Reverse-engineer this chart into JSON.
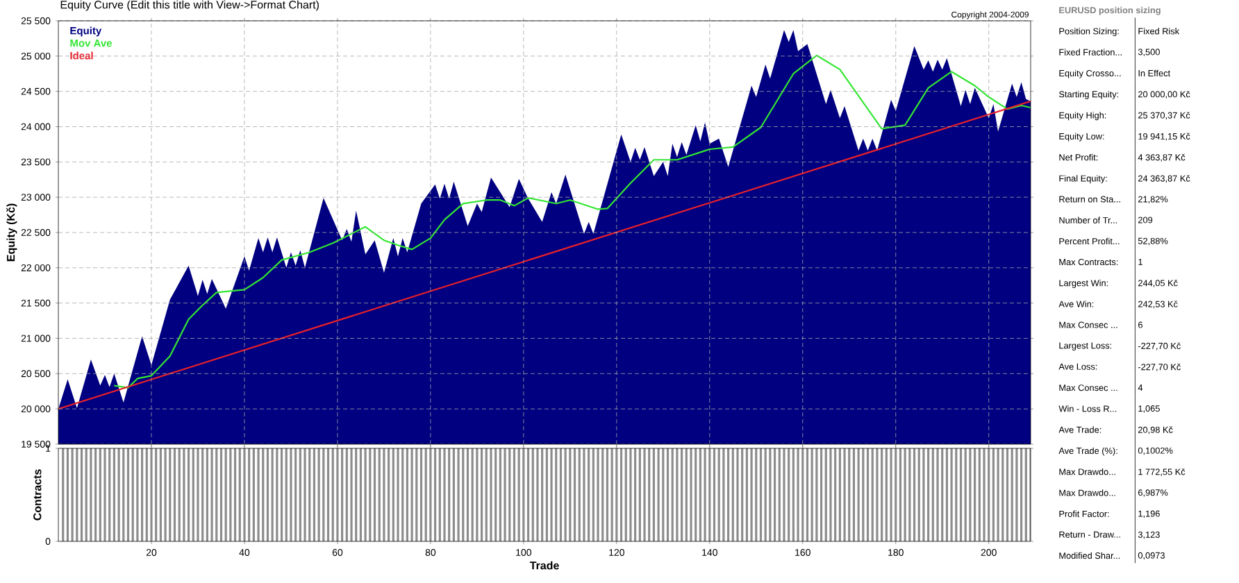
{
  "chart_data": [
    {
      "type": "line",
      "title": "Equity Curve (Edit this title with View->Format Chart)",
      "ylabel": "Equity (Kč)",
      "annotations": [
        "Copyright 2004-2009"
      ],
      "xlim": [
        0,
        209
      ],
      "xticks": [
        20,
        40,
        60,
        80,
        100,
        120,
        140,
        160,
        180,
        200
      ],
      "ylim": [
        19500,
        25500
      ],
      "yticks": [
        {
          "value": 19500,
          "label": "19 500"
        },
        {
          "value": 20000,
          "label": "20 000"
        },
        {
          "value": 20500,
          "label": "20 500"
        },
        {
          "value": 21000,
          "label": "21 000"
        },
        {
          "value": 21500,
          "label": "21 500"
        },
        {
          "value": 22000,
          "label": "22 000"
        },
        {
          "value": 22500,
          "label": "22 500"
        },
        {
          "value": 23000,
          "label": "23 000"
        },
        {
          "value": 23500,
          "label": "23 500"
        },
        {
          "value": 24000,
          "label": "24 000"
        },
        {
          "value": 24500,
          "label": "24 500"
        },
        {
          "value": 25000,
          "label": "25 000"
        },
        {
          "value": 25500,
          "label": "25 500"
        }
      ],
      "grid": true,
      "legend": "top left",
      "tick_labels": "y",
      "marker": "none",
      "series": [
        {
          "name": "Equity",
          "type": "area",
          "color": "#000080",
          "x": [
            0,
            2,
            4,
            7,
            9,
            10,
            11,
            12,
            14,
            18,
            20,
            24,
            28,
            30,
            31,
            32,
            33,
            36,
            40,
            41,
            43,
            44,
            45,
            46,
            47,
            49,
            50,
            51,
            52,
            53,
            57,
            61,
            62,
            63,
            64,
            66,
            68,
            70,
            72,
            73,
            74,
            75,
            78,
            81,
            82,
            83,
            84,
            85,
            88,
            90,
            91,
            93,
            97,
            99,
            101,
            104,
            106,
            107,
            109,
            113,
            114,
            115,
            121,
            123,
            124,
            125,
            126,
            128,
            130,
            131,
            132,
            133,
            134,
            135,
            137,
            138,
            139,
            140,
            142,
            144,
            149,
            150,
            152,
            153,
            156,
            157,
            158,
            159,
            161,
            165,
            166,
            168,
            169,
            172,
            173,
            174,
            175,
            176,
            179,
            180,
            184,
            186,
            187,
            188,
            189,
            190,
            191,
            194,
            195,
            196,
            197,
            200,
            201,
            202,
            205,
            206,
            207,
            208,
            209
          ],
          "values": [
            20000,
            20420,
            20010,
            20700,
            20330,
            20480,
            20310,
            20500,
            20090,
            21030,
            20620,
            21550,
            22030,
            21600,
            21830,
            21630,
            21840,
            21420,
            22160,
            21960,
            22420,
            22220,
            22430,
            22220,
            22430,
            22000,
            22220,
            22030,
            22250,
            22000,
            22990,
            22390,
            22550,
            22370,
            22810,
            22190,
            22390,
            21930,
            22420,
            22160,
            22420,
            22220,
            22910,
            23180,
            22980,
            23190,
            22980,
            23220,
            22590,
            22910,
            22790,
            23280,
            22860,
            23260,
            22980,
            22650,
            23070,
            22910,
            23320,
            22480,
            22650,
            22480,
            23890,
            23500,
            23700,
            23530,
            23710,
            23300,
            23500,
            23300,
            23760,
            23570,
            23780,
            23600,
            24020,
            23790,
            24060,
            23760,
            23830,
            23430,
            24580,
            24420,
            24880,
            24680,
            25370,
            25200,
            25370,
            25070,
            25170,
            24320,
            24520,
            24120,
            24290,
            23660,
            23830,
            23660,
            23830,
            23660,
            24380,
            24220,
            25140,
            24810,
            24940,
            24780,
            24950,
            24810,
            24970,
            24290,
            24520,
            24320,
            24550,
            24120,
            24320,
            23930,
            24610,
            24420,
            24630,
            24390,
            24360
          ]
        },
        {
          "name": "Mov Ave",
          "type": "line",
          "color": "#33e633",
          "x": [
            12,
            15,
            17,
            20,
            24,
            28,
            31,
            34,
            40,
            44,
            48,
            54,
            59,
            66,
            70,
            73,
            76,
            80,
            83,
            87,
            92,
            95,
            98,
            101,
            107,
            110,
            116,
            118,
            123,
            128,
            133,
            140,
            145,
            151,
            158,
            163,
            168,
            174,
            177,
            182,
            187,
            192,
            197,
            200,
            204,
            207,
            209
          ],
          "values": [
            20330,
            20300,
            20430,
            20470,
            20750,
            21270,
            21470,
            21650,
            21690,
            21860,
            22110,
            22220,
            22350,
            22580,
            22390,
            22320,
            22260,
            22420,
            22680,
            22910,
            22960,
            22960,
            22880,
            22990,
            22910,
            22960,
            22830,
            22840,
            23200,
            23530,
            23530,
            23680,
            23710,
            23990,
            24750,
            25010,
            24810,
            24250,
            23970,
            24020,
            24550,
            24780,
            24580,
            24420,
            24250,
            24300,
            24270
          ]
        },
        {
          "name": "Ideal",
          "type": "line",
          "color": "#e8202a",
          "x": [
            0,
            209
          ],
          "values": [
            20000,
            24360
          ]
        }
      ]
    },
    {
      "type": "bar",
      "xlabel": "Trade",
      "ylabel": "Contracts",
      "color": "#8c8c8c",
      "xlim": [
        0,
        209
      ],
      "xticks": [
        20,
        40,
        60,
        80,
        100,
        120,
        140,
        160,
        180,
        200
      ],
      "ylim": [
        0,
        1
      ],
      "yticks": [
        0,
        1
      ],
      "x": [
        1,
        2,
        3,
        4,
        5,
        6,
        7,
        8,
        9,
        10,
        11,
        12,
        13,
        14,
        15,
        16,
        17,
        18,
        19,
        20,
        21,
        22,
        23,
        24,
        25,
        26,
        27,
        28,
        29,
        30,
        31,
        32,
        33,
        34,
        35,
        36,
        37,
        38,
        39,
        40,
        41,
        42,
        43,
        44,
        45,
        46,
        47,
        48,
        49,
        50,
        51,
        52,
        53,
        54,
        55,
        56,
        57,
        58,
        59,
        60,
        61,
        62,
        63,
        64,
        65,
        66,
        67,
        68,
        69,
        70,
        71,
        72,
        73,
        74,
        75,
        76,
        77,
        78,
        79,
        80,
        81,
        82,
        83,
        84,
        85,
        86,
        87,
        88,
        89,
        90,
        91,
        92,
        93,
        94,
        95,
        96,
        97,
        98,
        99,
        100,
        101,
        102,
        103,
        104,
        105,
        106,
        107,
        108,
        109,
        110,
        111,
        112,
        113,
        114,
        115,
        116,
        117,
        118,
        119,
        120,
        121,
        122,
        123,
        124,
        125,
        126,
        127,
        128,
        129,
        130,
        131,
        132,
        133,
        134,
        135,
        136,
        137,
        138,
        139,
        140,
        141,
        142,
        143,
        144,
        145,
        146,
        147,
        148,
        149,
        150,
        151,
        152,
        153,
        154,
        155,
        156,
        157,
        158,
        159,
        160,
        161,
        162,
        163,
        164,
        165,
        166,
        167,
        168,
        169,
        170,
        171,
        172,
        173,
        174,
        175,
        176,
        177,
        178,
        179,
        180,
        181,
        182,
        183,
        184,
        185,
        186,
        187,
        188,
        189,
        190,
        191,
        192,
        193,
        194,
        195,
        196,
        197,
        198,
        199,
        200,
        201,
        202,
        203,
        204,
        205,
        206,
        207,
        208,
        209
      ],
      "values": [
        1,
        1,
        1,
        1,
        1,
        1,
        1,
        1,
        1,
        1,
        1,
        1,
        1,
        1,
        1,
        1,
        1,
        1,
        1,
        1,
        1,
        1,
        1,
        1,
        1,
        1,
        1,
        1,
        1,
        1,
        1,
        1,
        1,
        1,
        1,
        1,
        1,
        1,
        1,
        1,
        1,
        1,
        1,
        1,
        1,
        1,
        1,
        1,
        1,
        1,
        1,
        1,
        1,
        1,
        1,
        1,
        1,
        1,
        1,
        1,
        1,
        1,
        1,
        1,
        1,
        1,
        1,
        1,
        1,
        1,
        1,
        1,
        1,
        1,
        1,
        1,
        1,
        1,
        1,
        1,
        1,
        1,
        1,
        1,
        1,
        1,
        1,
        1,
        1,
        1,
        1,
        1,
        1,
        1,
        1,
        1,
        1,
        1,
        1,
        1,
        1,
        1,
        1,
        1,
        1,
        1,
        1,
        1,
        1,
        1,
        1,
        1,
        1,
        1,
        1,
        1,
        1,
        1,
        1,
        1,
        1,
        1,
        1,
        1,
        1,
        1,
        1,
        1,
        1,
        1,
        1,
        1,
        1,
        1,
        1,
        1,
        1,
        1,
        1,
        1,
        1,
        1,
        1,
        1,
        1,
        1,
        1,
        1,
        1,
        1,
        1,
        1,
        1,
        1,
        1,
        1,
        1,
        1,
        1,
        1,
        1,
        1,
        1,
        1,
        1,
        1,
        1,
        1,
        1,
        1,
        1,
        1,
        1,
        1,
        1,
        1,
        1,
        1,
        1,
        1,
        1,
        1,
        1,
        1,
        1,
        1,
        1,
        1,
        1,
        1,
        1,
        1,
        1,
        1,
        1,
        1,
        1,
        1,
        1,
        1,
        1,
        1,
        1,
        1,
        1,
        1,
        1,
        1,
        1
      ]
    },
    {
      "type": "other",
      "title": "EURUSD position sizing",
      "annotations": [
        "Position Sizing:",
        "Fixed Risk",
        "Fixed Fraction...",
        "3,500",
        "Equity Crosso...",
        "In Effect",
        "Starting Equity:",
        "20 000,00 Kč",
        "Equity High:",
        "25 370,37 Kč",
        "Equity Low:",
        "19 941,15 Kč",
        "Net Profit:",
        "4 363,87 Kč",
        "Final Equity:",
        "24 363,87 Kč",
        "Return on Sta...",
        "21,82%",
        "Number of Tr...",
        "209",
        "Percent Profit...",
        "52,88%",
        "Max Contracts:",
        "1",
        "Largest Win:",
        "244,05 Kč",
        "Ave Win:",
        "242,53 Kč",
        "Max Consec ...",
        "6",
        "Largest Loss:",
        "-227,70 Kč",
        "Ave Loss:",
        "-227,70 Kč",
        "Max Consec ...",
        "4",
        "Win - Loss R...",
        "1,065",
        "Ave Trade:",
        "20,98 Kč",
        "Ave Trade (%):",
        "0,1002%",
        "Max Drawdo...",
        "1 772,55 Kč",
        "Max Drawdo...",
        "6,987%",
        "Profit Factor:",
        "1,196",
        "Return - Draw...",
        "3,123",
        "Modified Shar...",
        "0,0973"
      ]
    }
  ]
}
